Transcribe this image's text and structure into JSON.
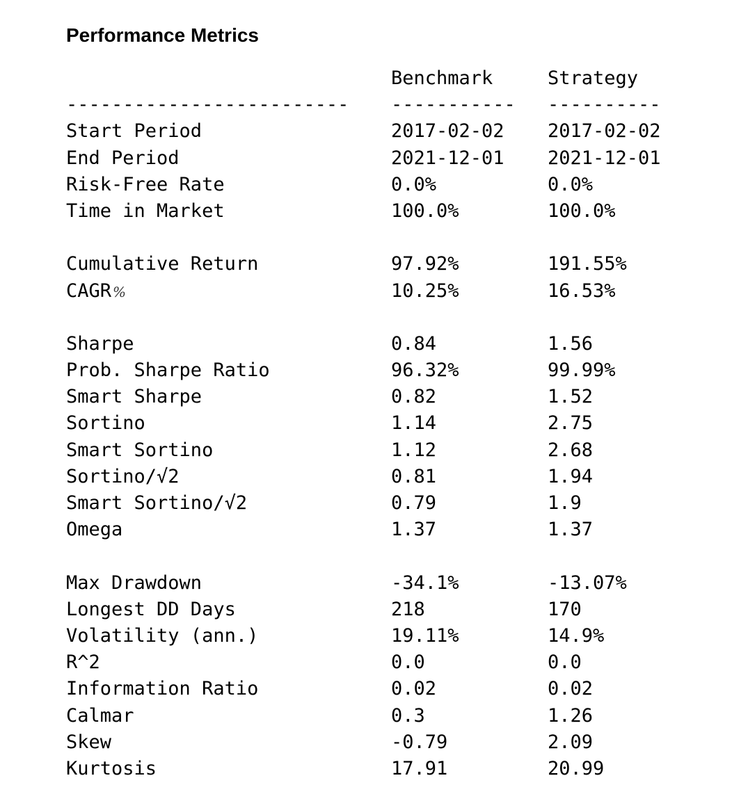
{
  "title": "Performance Metrics",
  "header": {
    "metric": "",
    "benchmark": "Benchmark",
    "strategy": "Strategy"
  },
  "separator": {
    "metric": "-------------------------",
    "benchmark": "-----------",
    "strategy": "----------"
  },
  "groups": [
    [
      {
        "metric": "Start Period",
        "benchmark": "2017-02-02",
        "strategy": "2017-02-02"
      },
      {
        "metric": "End Period",
        "benchmark": "2021-12-01",
        "strategy": "2021-12-01"
      },
      {
        "metric": "Risk-Free Rate",
        "benchmark": "0.0%",
        "strategy": "0.0%"
      },
      {
        "metric": "Time in Market",
        "benchmark": "100.0%",
        "strategy": "100.0%"
      }
    ],
    [
      {
        "metric": "Cumulative Return",
        "benchmark": "97.92%",
        "strategy": "191.55%"
      },
      {
        "metric": "CAGR",
        "metric_suffix": "%",
        "benchmark": "10.25%",
        "strategy": "16.53%"
      }
    ],
    [
      {
        "metric": "Sharpe",
        "benchmark": "0.84",
        "strategy": "1.56"
      },
      {
        "metric": "Prob. Sharpe Ratio",
        "benchmark": "96.32%",
        "strategy": "99.99%"
      },
      {
        "metric": "Smart Sharpe",
        "benchmark": "0.82",
        "strategy": "1.52"
      },
      {
        "metric": "Sortino",
        "benchmark": "1.14",
        "strategy": "2.75"
      },
      {
        "metric": "Smart Sortino",
        "benchmark": "1.12",
        "strategy": "2.68"
      },
      {
        "metric": "Sortino/√2",
        "benchmark": "0.81",
        "strategy": "1.94"
      },
      {
        "metric": "Smart Sortino/√2",
        "benchmark": "0.79",
        "strategy": "1.9"
      },
      {
        "metric": "Omega",
        "benchmark": "1.37",
        "strategy": "1.37"
      }
    ],
    [
      {
        "metric": "Max Drawdown",
        "benchmark": "-34.1%",
        "strategy": "-13.07%"
      },
      {
        "metric": "Longest DD Days",
        "benchmark": "218",
        "strategy": "170"
      },
      {
        "metric": "Volatility (ann.)",
        "benchmark": "19.11%",
        "strategy": "14.9%"
      },
      {
        "metric": "R^2",
        "benchmark": "0.0",
        "strategy": "0.0"
      },
      {
        "metric": "Information Ratio",
        "benchmark": "0.02",
        "strategy": "0.02"
      },
      {
        "metric": "Calmar",
        "benchmark": "0.3",
        "strategy": "1.26"
      },
      {
        "metric": "Skew",
        "benchmark": "-0.79",
        "strategy": "2.09"
      },
      {
        "metric": "Kurtosis",
        "benchmark": "17.91",
        "strategy": "20.99"
      }
    ]
  ]
}
